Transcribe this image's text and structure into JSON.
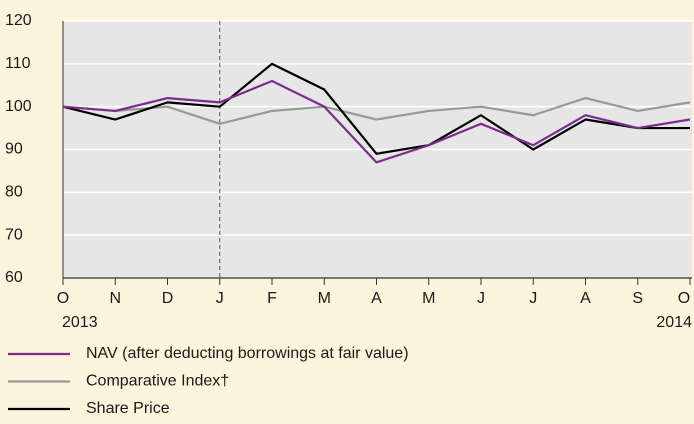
{
  "chart_data": {
    "type": "line",
    "categories": [
      "O",
      "N",
      "D",
      "J",
      "F",
      "M",
      "A",
      "M",
      "J",
      "J",
      "A",
      "S",
      "O"
    ],
    "annotations": [
      "2013",
      "2014"
    ],
    "series": [
      {
        "name": "NAV (after deducting borrowings at fair value)",
        "color": "#7b2d8e",
        "values": [
          100,
          99,
          102,
          101,
          106,
          100,
          87,
          91,
          96,
          91,
          98,
          95,
          97
        ]
      },
      {
        "name": "Comparative Index†",
        "color": "#999999",
        "values": [
          100,
          99,
          100,
          96,
          99,
          100,
          97,
          99,
          100,
          98,
          102,
          99,
          101
        ]
      },
      {
        "name": "Share Price",
        "color": "#000000",
        "values": [
          100,
          97,
          101,
          100,
          110,
          104,
          89,
          91,
          98,
          90,
          97,
          95,
          95
        ]
      }
    ],
    "ylim": [
      60,
      120
    ],
    "yticks": [
      60,
      70,
      80,
      90,
      100,
      110,
      120
    ],
    "grid": true
  }
}
